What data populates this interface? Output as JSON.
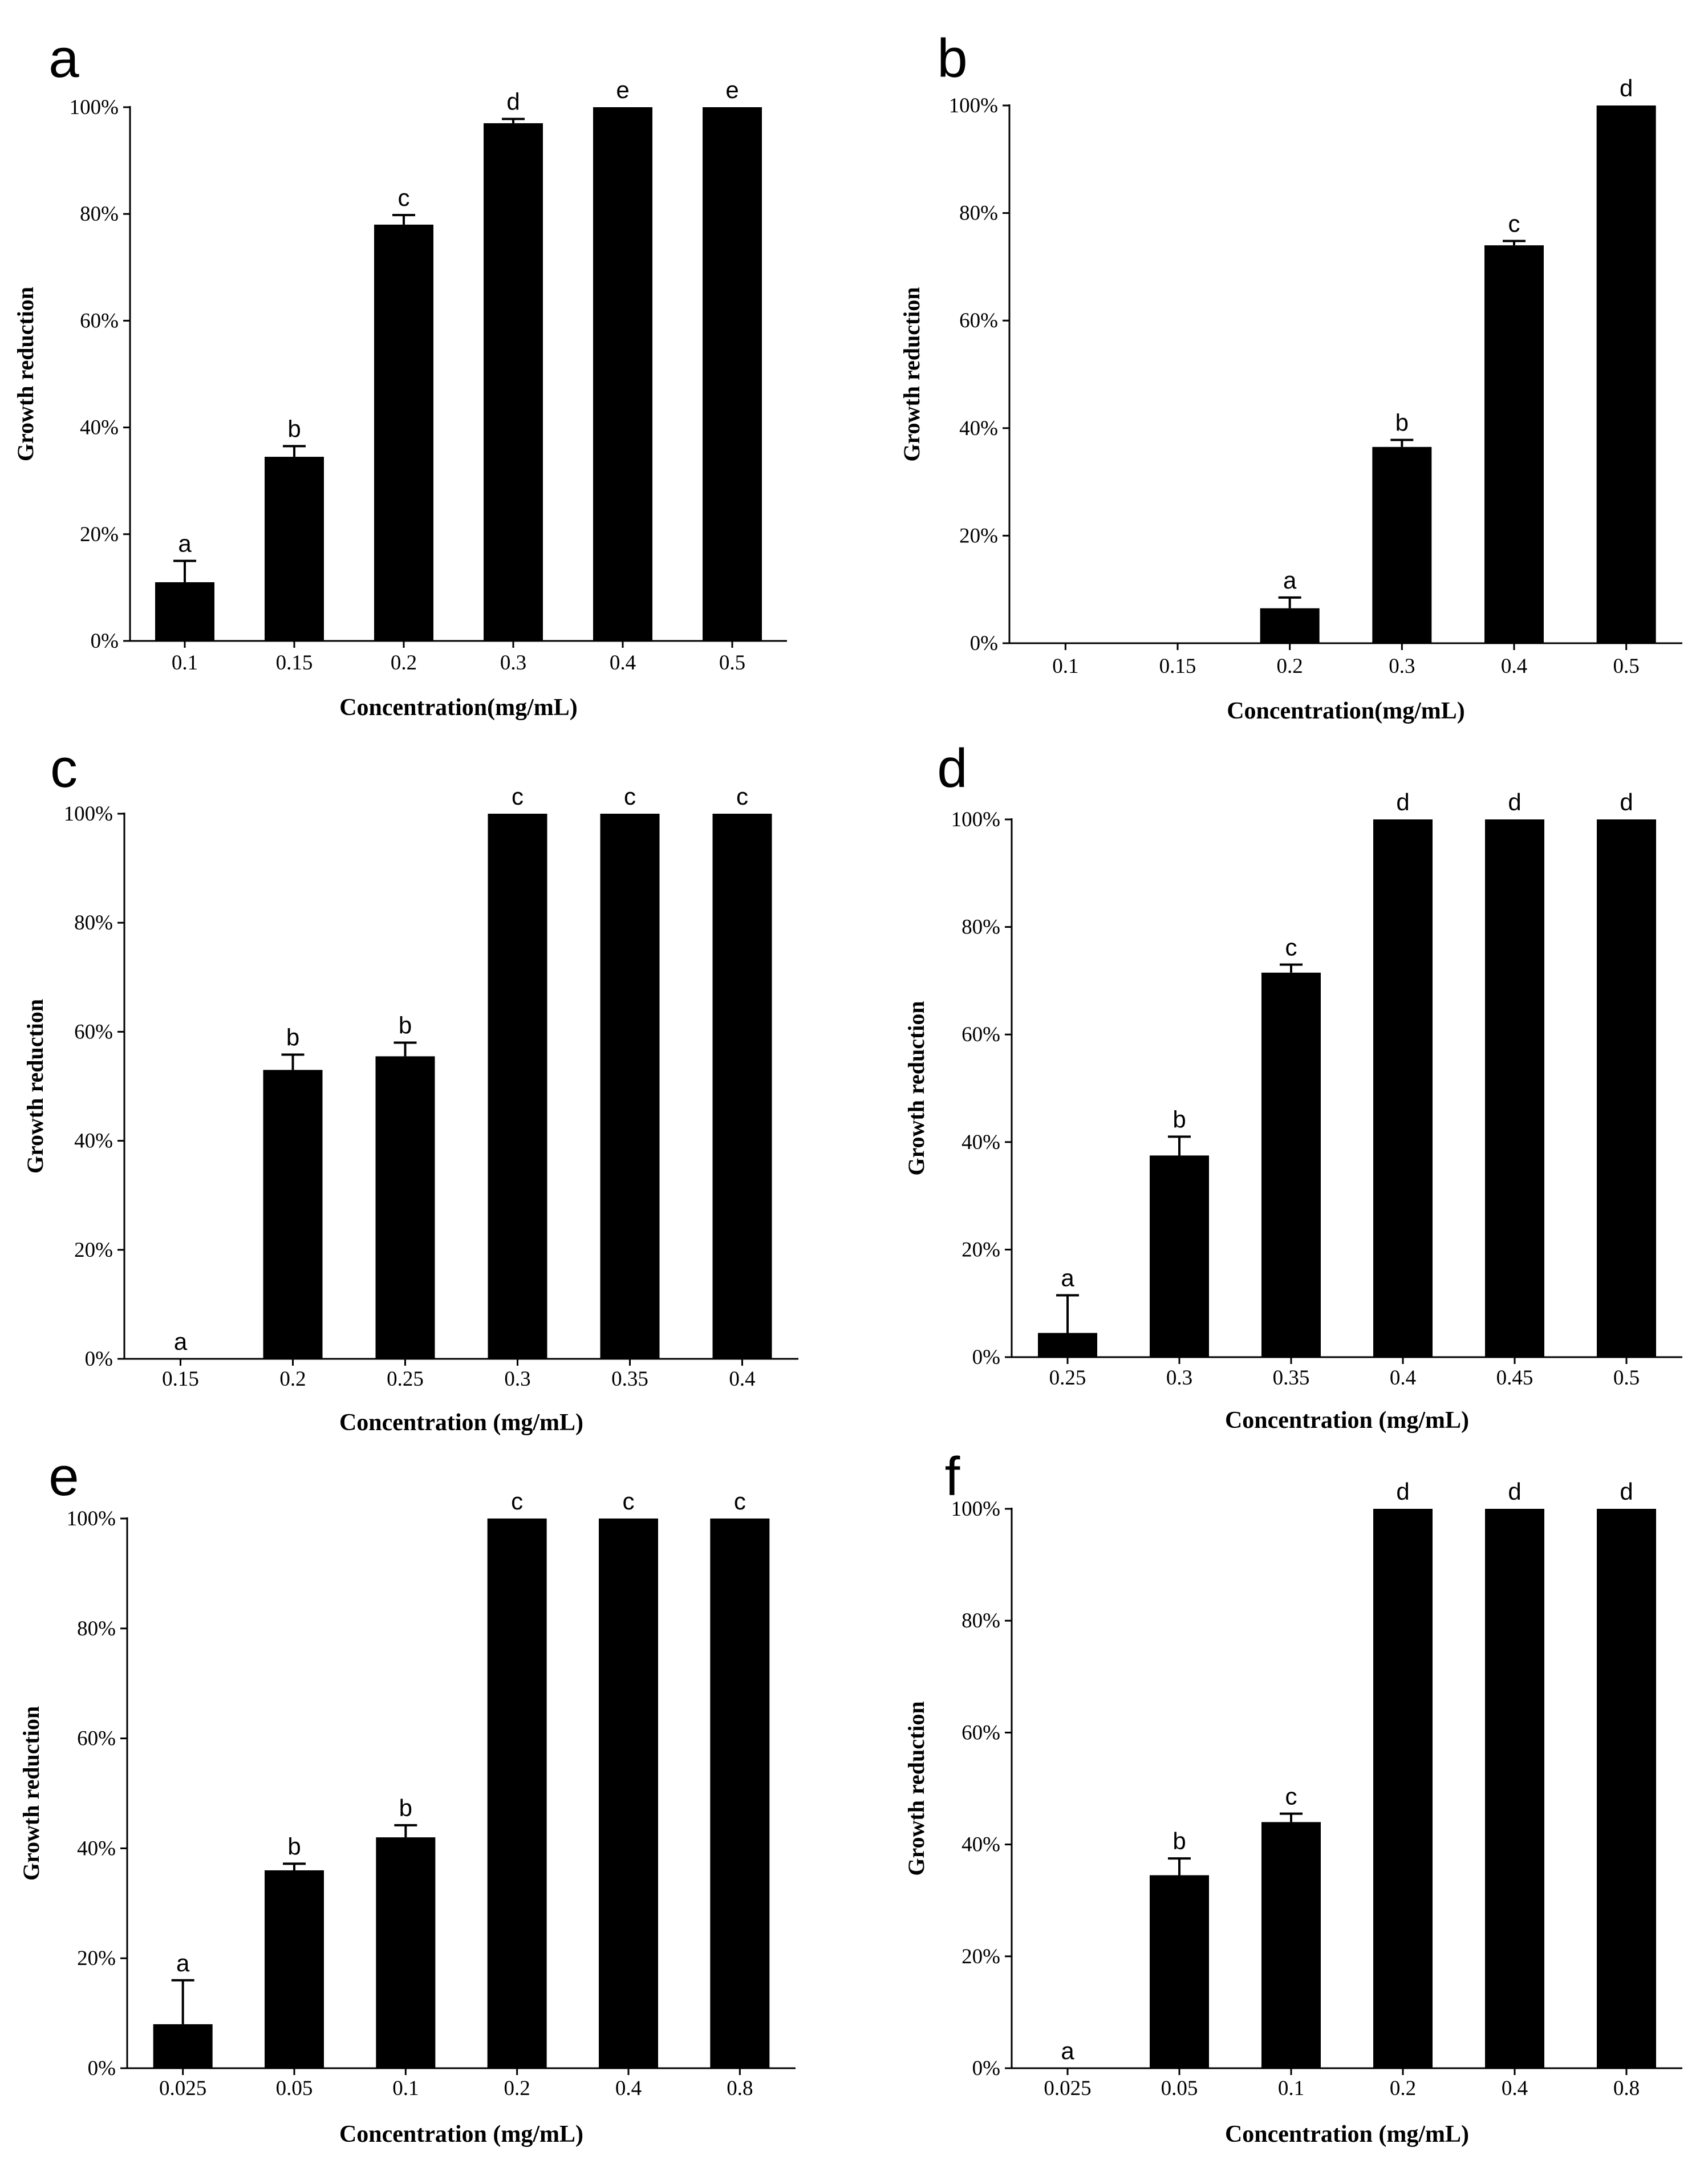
{
  "chart_data": [
    {
      "type": "bar",
      "panel_label": "a",
      "categories": [
        "0.1",
        "0.15",
        "0.2",
        "0.3",
        "0.4",
        "0.5"
      ],
      "values": [
        11,
        34.5,
        78,
        97,
        100,
        100
      ],
      "errors": [
        4,
        2,
        1.8,
        0.8,
        0,
        0
      ],
      "significance": [
        "a",
        "b",
        "c",
        "d",
        "e",
        "e"
      ],
      "xlabel": "Concentration(mg/mL)",
      "ylabel": "Growth reduction",
      "ylim": [
        0,
        100
      ],
      "yticks": [
        "0%",
        "20%",
        "40%",
        "60%",
        "80%",
        "100%"
      ]
    },
    {
      "type": "bar",
      "panel_label": "b",
      "categories": [
        "0.1",
        "0.15",
        "0.2",
        "0.3",
        "0.4",
        "0.5"
      ],
      "values": [
        0,
        0,
        6.5,
        36.5,
        74,
        100
      ],
      "errors": [
        0,
        0,
        2,
        1.3,
        0.8,
        0
      ],
      "significance": [
        "",
        "",
        "a",
        "b",
        "c",
        "d"
      ],
      "xlabel": "Concentration(mg/mL)",
      "ylabel": "Growth reduction",
      "ylim": [
        0,
        100
      ],
      "yticks": [
        "0%",
        "20%",
        "40%",
        "60%",
        "80%",
        "100%"
      ]
    },
    {
      "type": "bar",
      "panel_label": "c",
      "categories": [
        "0.15",
        "0.2",
        "0.25",
        "0.3",
        "0.35",
        "0.4"
      ],
      "values": [
        0,
        53,
        55.5,
        100,
        100,
        100
      ],
      "errors": [
        0,
        2.8,
        2.5,
        0,
        0,
        0
      ],
      "significance": [
        "a",
        "b",
        "b",
        "c",
        "c",
        "c"
      ],
      "xlabel": "Concentration (mg/mL)",
      "ylabel": "Growth reduction",
      "ylim": [
        0,
        100
      ],
      "yticks": [
        "0%",
        "20%",
        "40%",
        "60%",
        "80%",
        "100%"
      ]
    },
    {
      "type": "bar",
      "panel_label": "d",
      "categories": [
        "0.25",
        "0.3",
        "0.35",
        "0.4",
        "0.45",
        "0.5"
      ],
      "values": [
        4.5,
        37.5,
        71.5,
        100,
        100,
        100
      ],
      "errors": [
        7,
        3.5,
        1.5,
        0,
        0,
        0
      ],
      "significance": [
        "a",
        "b",
        "c",
        "d",
        "d",
        "d"
      ],
      "xlabel": "Concentration (mg/mL)",
      "ylabel": "Growth reduction",
      "ylim": [
        0,
        100
      ],
      "yticks": [
        "0%",
        "20%",
        "40%",
        "60%",
        "80%",
        "100%"
      ]
    },
    {
      "type": "bar",
      "panel_label": "e",
      "categories": [
        "0.025",
        "0.05",
        "0.1",
        "0.2",
        "0.4",
        "0.8"
      ],
      "values": [
        8,
        36,
        42,
        100,
        100,
        100
      ],
      "errors": [
        8,
        1.2,
        2.2,
        0,
        0,
        0
      ],
      "significance": [
        "a",
        "b",
        "b",
        "c",
        "c",
        "c"
      ],
      "xlabel": "Concentration (mg/mL)",
      "ylabel": "Growth reduction",
      "ylim": [
        0,
        100
      ],
      "yticks": [
        "0%",
        "20%",
        "40%",
        "60%",
        "80%",
        "100%"
      ]
    },
    {
      "type": "bar",
      "panel_label": "f",
      "categories": [
        "0.025",
        "0.05",
        "0.1",
        "0.2",
        "0.4",
        "0.8"
      ],
      "values": [
        0,
        34.5,
        44,
        100,
        100,
        100
      ],
      "errors": [
        0,
        3,
        1.5,
        0,
        0,
        0
      ],
      "significance": [
        "a",
        "b",
        "c",
        "d",
        "d",
        "d"
      ],
      "xlabel": "Concentration (mg/mL)",
      "ylabel": "Growth reduction",
      "ylim": [
        0,
        100
      ],
      "yticks": [
        "0%",
        "20%",
        "40%",
        "60%",
        "80%",
        "100%"
      ]
    }
  ]
}
